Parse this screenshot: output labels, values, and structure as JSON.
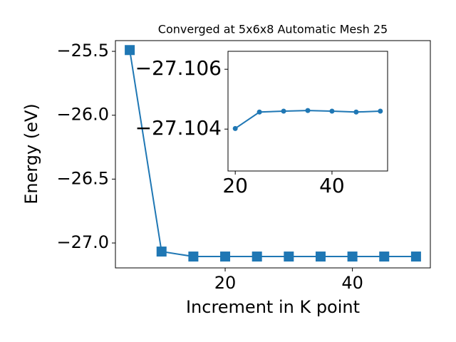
{
  "chart_data": [
    {
      "type": "line",
      "title": "Converged at 5x6x8 Automatic Mesh 25",
      "x_label": "Increment in K point",
      "y_label": "Energy (eV)",
      "x": [
        5,
        10,
        15,
        20,
        25,
        30,
        35,
        40,
        45,
        50
      ],
      "series": [
        {
          "color": "#1f77b4",
          "marker": "square",
          "values": [
            -25.49,
            -27.067,
            -27.106,
            -27.106,
            -27.106,
            -27.106,
            -27.106,
            -27.106,
            -27.106,
            -27.106
          ]
        }
      ],
      "xlim": [
        2.75,
        52.25
      ],
      "xticks": [
        20,
        40
      ],
      "ylim": [
        -27.195,
        -25.416
      ],
      "yticks": [
        {
          "value": -27.0,
          "label": "−27.0"
        },
        {
          "value": -26.5,
          "label": "−26.5"
        },
        {
          "value": -26.0,
          "label": "−26.0"
        },
        {
          "value": -25.5,
          "label": "−25.5"
        }
      ]
    },
    {
      "type": "line",
      "x": [
        20,
        25,
        30,
        35,
        40,
        45,
        50
      ],
      "series": [
        {
          "color": "#1f77b4",
          "marker": "circle",
          "values": [
            -27.10402,
            -27.10457,
            -27.1046,
            -27.10462,
            -27.1046,
            -27.10457,
            -27.1046
          ]
        }
      ],
      "xlim": [
        18.5,
        51.5
      ],
      "xticks": [
        20,
        40
      ],
      "ylim": [
        -27.1026,
        -27.1066
      ],
      "yticks": [
        {
          "value": -27.104,
          "label": "−27.104"
        },
        {
          "value": -27.106,
          "label": "−27.106"
        }
      ]
    }
  ]
}
